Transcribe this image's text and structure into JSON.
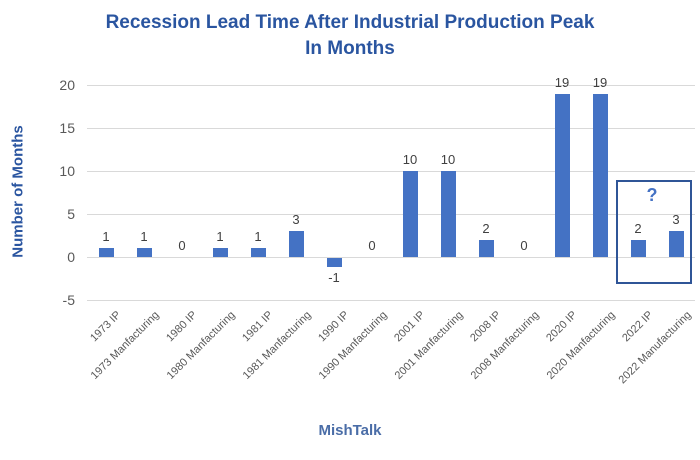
{
  "title": {
    "line1": "Recession Lead Time After Industrial Production Peak",
    "line2": "In Months"
  },
  "footer": "MishTalk",
  "y_axis": {
    "label": "Number of Months",
    "ticks": [
      20,
      15,
      10,
      5,
      0,
      -5
    ]
  },
  "annotation": {
    "question_mark": "?"
  },
  "chart_data": {
    "type": "bar",
    "title": "Recession Lead Time After Industrial Production Peak In Months",
    "categories": [
      "1973 IP",
      "1973 Manfacturing",
      "1980 IP",
      "1980 Manfacturing",
      "1981 IP",
      "1981 Manfacturing",
      "1990 IP",
      "1990 Manfacturing",
      "2001 IP",
      "2001 Manfacturing",
      "2008 IP",
      "2008 Manfacturing",
      "2020 IP",
      "2020 Manfacturing",
      "2022 IP",
      "2022 Manufacturing"
    ],
    "values": [
      1,
      1,
      0,
      1,
      1,
      3,
      -1,
      0,
      10,
      10,
      2,
      0,
      19,
      19,
      2,
      3
    ],
    "xlabel": "",
    "ylabel": "Number of Months",
    "ylim": [
      -5,
      20
    ],
    "grid": "horizontal",
    "legend": "none",
    "highlight": {
      "categories": [
        "2022 IP",
        "2022 Manufacturing"
      ],
      "label": "?"
    }
  },
  "colors": {
    "bar": "#4472C4",
    "title_blue": "#2A55A0",
    "footer_blue": "#4A6DA7",
    "grid": "#D9D9D9",
    "axis_text": "#595959",
    "data_label": "#404040",
    "box_border": "#2F5597"
  }
}
